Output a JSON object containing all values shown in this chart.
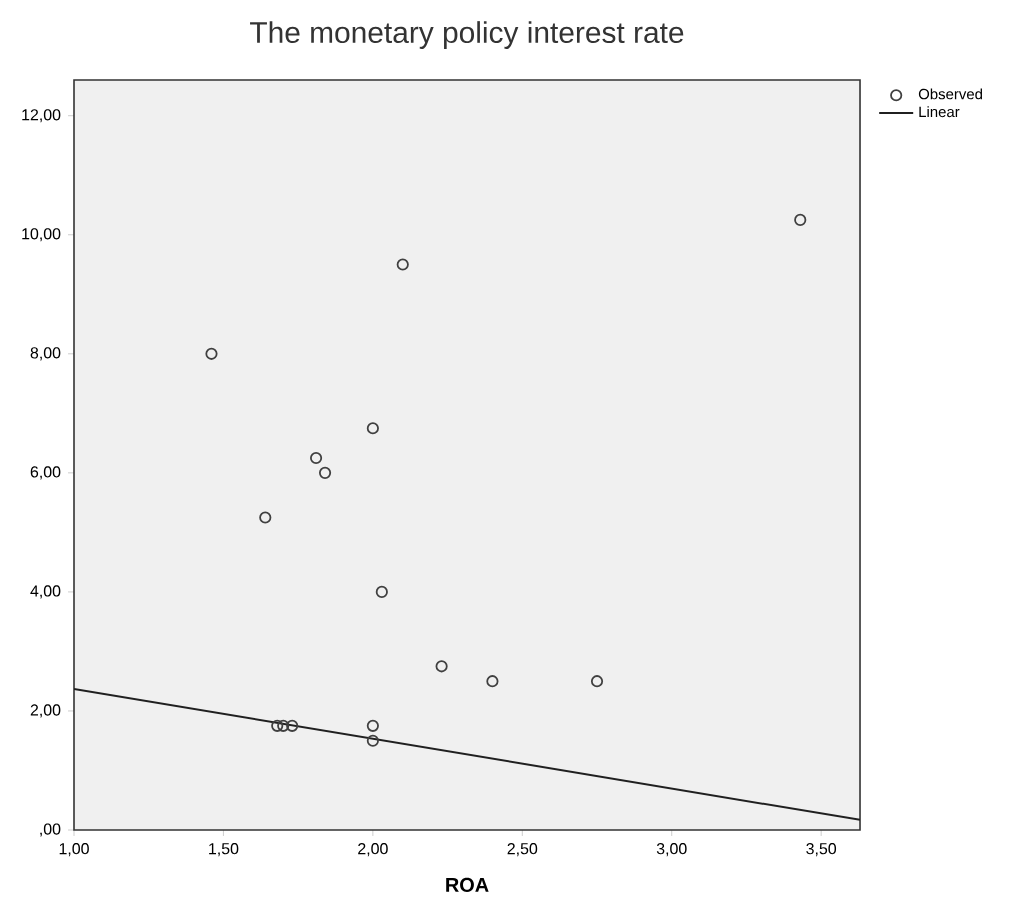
{
  "chart_data": {
    "type": "scatter",
    "title": "The monetary policy interest rate",
    "xlabel": "ROA",
    "xlim": [
      1,
      3.63
    ],
    "ylim": [
      0,
      12.6
    ],
    "xticks": [
      {
        "value": 1,
        "label": "1,00"
      },
      {
        "value": 1.5,
        "label": "1,50"
      },
      {
        "value": 2,
        "label": "2,00"
      },
      {
        "value": 2.5,
        "label": "2,50"
      },
      {
        "value": 3,
        "label": "3,00"
      },
      {
        "value": 3.5,
        "label": "3,50"
      }
    ],
    "yticks": [
      {
        "value": 0,
        "label": ",00"
      },
      {
        "value": 2,
        "label": "2,00"
      },
      {
        "value": 4,
        "label": "4,00"
      },
      {
        "value": 6,
        "label": "6,00"
      },
      {
        "value": 8,
        "label": "8,00"
      },
      {
        "value": 10,
        "label": "10,00"
      },
      {
        "value": 12,
        "label": "12,00"
      }
    ],
    "legend": "top right",
    "grid": false,
    "series": [
      {
        "name": "Observed",
        "marker": "circle",
        "color": "#404040",
        "x": [
          1.46,
          2.1,
          3.43,
          2.0,
          1.81,
          1.84,
          1.64,
          2.03,
          2.23,
          2.4,
          2.75,
          2.0,
          2.0,
          1.68,
          1.7,
          1.73
        ],
        "values": [
          8.0,
          9.5,
          10.25,
          6.75,
          6.25,
          6.0,
          5.25,
          4.0,
          2.75,
          2.5,
          2.5,
          1.75,
          1.5,
          1.75,
          1.75,
          1.75
        ]
      },
      {
        "name": "Linear",
        "type": "line",
        "marker": "none",
        "line_style": "solid",
        "color": "#202020",
        "x": [
          1.0,
          3.63
        ],
        "values": [
          2.37,
          0.17
        ]
      }
    ]
  }
}
